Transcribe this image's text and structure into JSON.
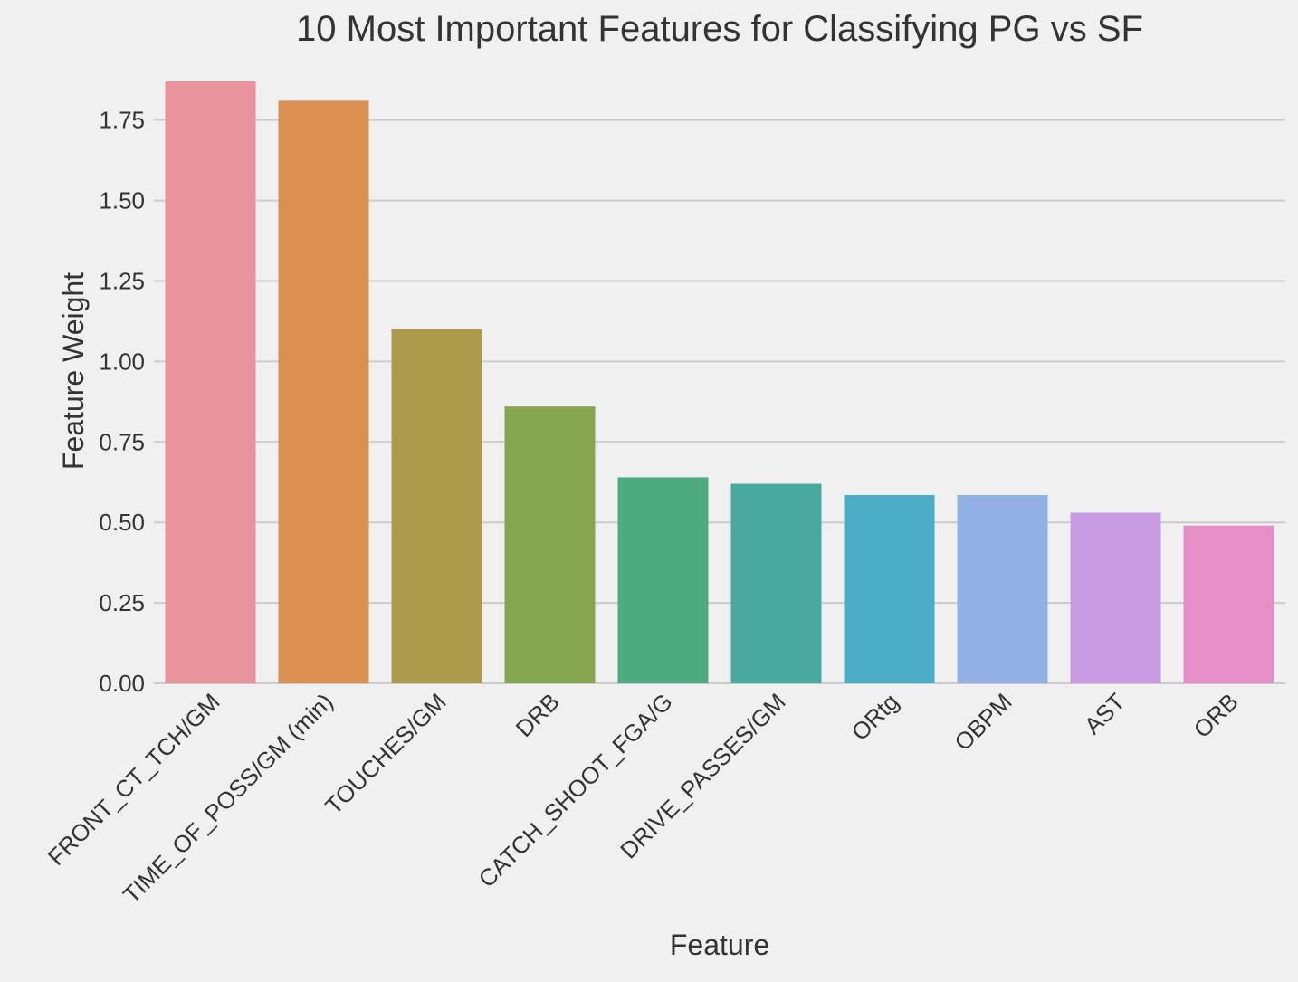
{
  "chart_data": {
    "type": "bar",
    "title": "10 Most Important Features for Classifying PG vs SF",
    "xlabel": "Feature",
    "ylabel": "Feature Weight",
    "categories": [
      "FRONT_CT_TCH/GM",
      "TIME_OF_POSS/GM (min)",
      "TOUCHES/GM",
      "DRB",
      "CATCH_SHOOT_FGA/G",
      "DRIVE_PASSES/GM",
      "ORtg",
      "OBPM",
      "AST",
      "ORB"
    ],
    "values": [
      1.87,
      1.81,
      1.1,
      0.86,
      0.64,
      0.62,
      0.585,
      0.585,
      0.53,
      0.49
    ],
    "colors": [
      "#e8949e",
      "#d99050",
      "#ab9a4c",
      "#85a64f",
      "#4eab80",
      "#4aa99f",
      "#4aacc4",
      "#92b0e5",
      "#c99be3",
      "#e68ec8"
    ],
    "ylim": [
      0,
      1.87
    ],
    "yticks": [
      "0.00",
      "0.25",
      "0.50",
      "0.75",
      "1.00",
      "1.25",
      "1.50",
      "1.75"
    ],
    "grid": true,
    "legend": "none"
  }
}
